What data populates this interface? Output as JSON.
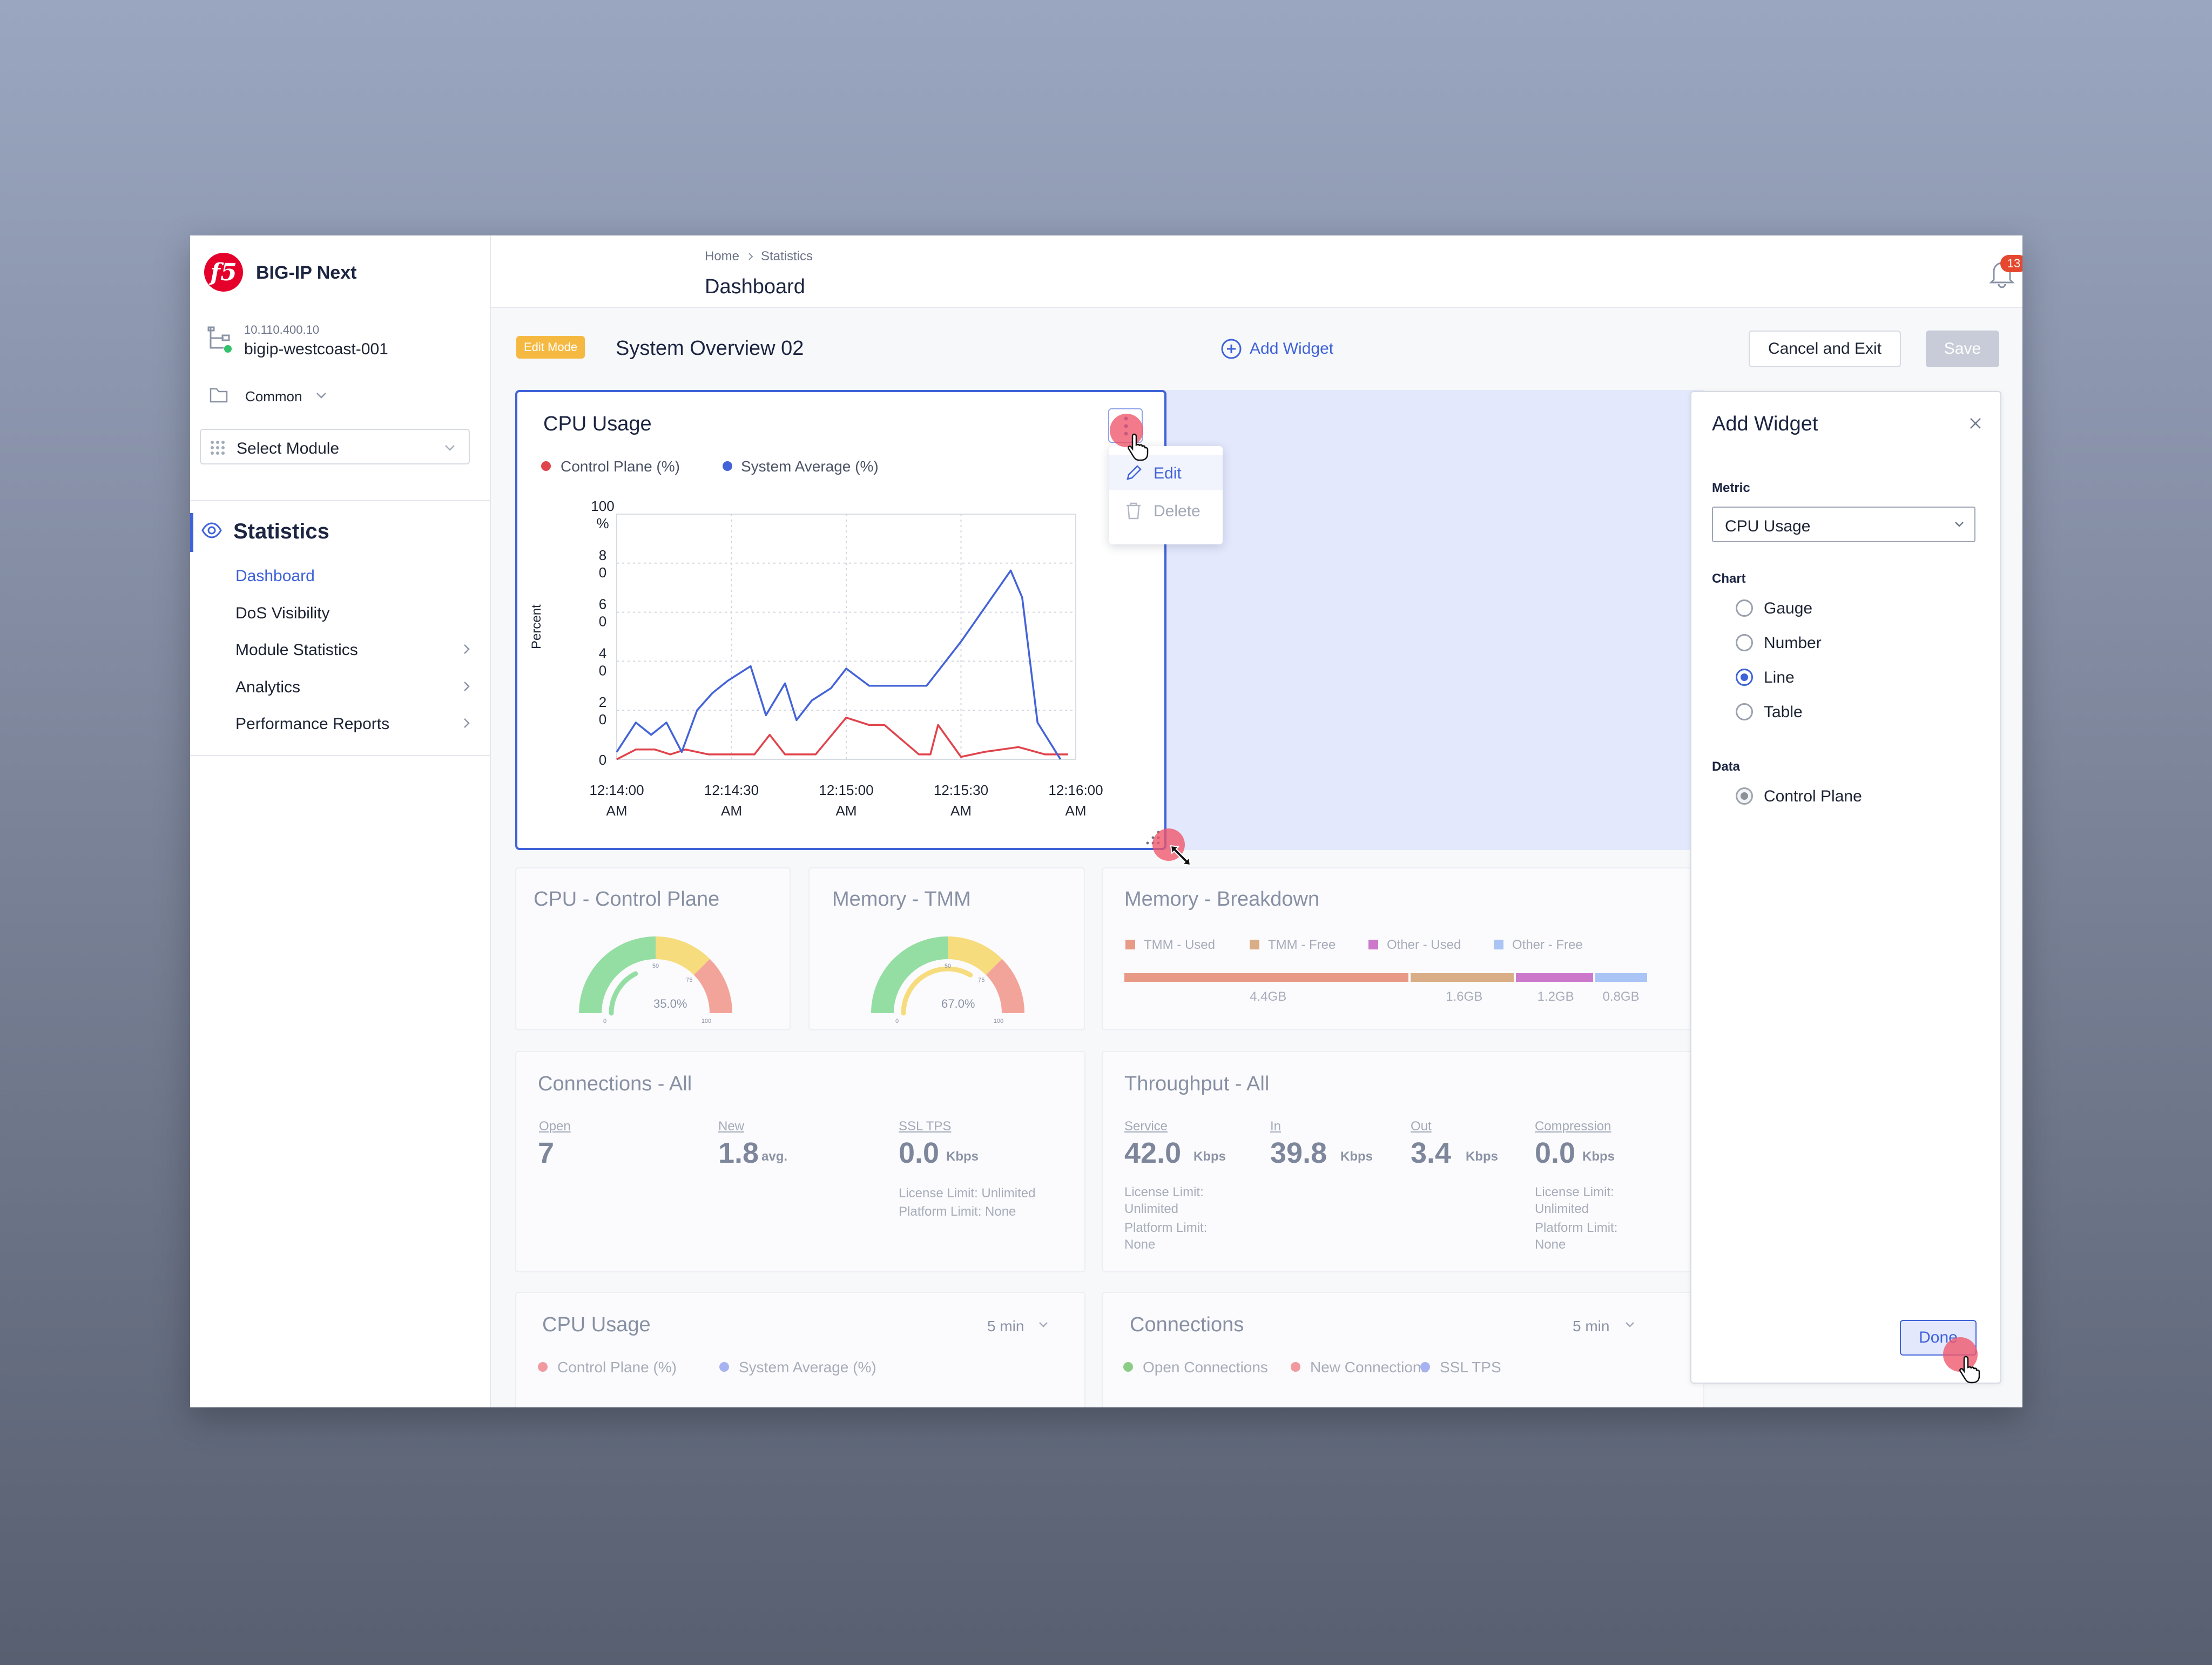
{
  "app": {
    "name": "BIG-IP Next"
  },
  "device": {
    "ip": "10.110.400.10",
    "name": "bigip-westcoast-001"
  },
  "partition": "Common",
  "module_select": {
    "placeholder": "Select Module"
  },
  "nav": {
    "section": "Statistics",
    "items": [
      {
        "label": "Dashboard",
        "active": true
      },
      {
        "label": "DoS Visibility"
      },
      {
        "label": "Module Statistics"
      },
      {
        "label": "Analytics"
      },
      {
        "label": "Performance Reports"
      }
    ]
  },
  "breadcrumb": {
    "home": "Home",
    "current": "Statistics"
  },
  "page_title": "Dashboard",
  "header": {
    "notifications_count": "13"
  },
  "toolbar": {
    "mode_badge": "Edit Mode",
    "dashboard_name": "System Overview 02",
    "add_widget": "Add Widget",
    "cancel": "Cancel and Exit",
    "save": "Save"
  },
  "cpu_widget": {
    "title": "CPU Usage",
    "legend": [
      "Control Plane (%)",
      "System Average (%)"
    ],
    "ylabel": "Percent",
    "menu": {
      "edit": "Edit",
      "delete": "Delete"
    }
  },
  "chart_data": {
    "type": "line",
    "title": "CPU Usage",
    "xlabel": "",
    "ylabel": "Percent",
    "ylim": [
      0,
      100
    ],
    "ytick_labels": [
      "100\n%",
      "8\n0",
      "6\n0",
      "4\n0",
      "2\n0",
      "0"
    ],
    "yticks": [
      100,
      80,
      60,
      40,
      20,
      0
    ],
    "x_tick_labels": [
      "12:14:00\nAM",
      "12:14:30\nAM",
      "12:15:00\nAM",
      "12:15:30\nAM",
      "12:16:00\nAM"
    ],
    "x_ticks": [
      0,
      30,
      60,
      90,
      120
    ],
    "grid": true,
    "legend_position": "top-left",
    "series": [
      {
        "name": "Control Plane (%)",
        "color": "#e0444c",
        "x": [
          0,
          5,
          10,
          14,
          18,
          24,
          30,
          36,
          40,
          44,
          52,
          60,
          66,
          70,
          79,
          82,
          84,
          90,
          96,
          105,
          112,
          118
        ],
        "y": [
          0,
          4,
          4,
          2,
          4,
          2,
          2,
          2,
          10,
          2,
          2,
          17,
          14,
          14,
          2,
          2,
          14,
          1,
          3,
          5,
          2,
          2
        ]
      },
      {
        "name": "System Average (%)",
        "color": "#4463d8",
        "x": [
          0,
          5,
          9,
          13,
          17,
          21,
          25,
          29,
          35,
          39,
          44,
          47,
          51,
          56,
          60,
          66,
          70,
          78,
          81,
          90,
          103,
          106,
          110,
          116
        ],
        "y": [
          3,
          15,
          10,
          15,
          3,
          20,
          27,
          32,
          38,
          18,
          31,
          16,
          24,
          29,
          37,
          30,
          30,
          30,
          30,
          48,
          77,
          66,
          15,
          0
        ]
      }
    ]
  },
  "gauges": [
    {
      "title": "CPU - Control Plane",
      "value": 35.0,
      "label": "35.0%",
      "ticks": [
        "0",
        "50",
        "75",
        "100"
      ]
    },
    {
      "title": "Memory - TMM",
      "value": 67.0,
      "label": "67.0%",
      "ticks": [
        "0",
        "50",
        "75",
        "100"
      ]
    }
  ],
  "memory_breakdown": {
    "title": "Memory - Breakdown",
    "segments": [
      {
        "name": "TMM - Used",
        "value": "4.4GB",
        "gb": 4.4,
        "color": "#e99a86"
      },
      {
        "name": "TMM - Free",
        "value": "1.6GB",
        "gb": 1.6,
        "color": "#d9ad86"
      },
      {
        "name": "Other - Used",
        "value": "1.2GB",
        "gb": 1.2,
        "color": "#cc79cc"
      },
      {
        "name": "Other - Free",
        "value": "0.8GB",
        "gb": 0.8,
        "color": "#a9c4f5"
      }
    ]
  },
  "connections": {
    "title": "Connections - All",
    "stats": [
      {
        "label": "Open",
        "value": "7",
        "unit": ""
      },
      {
        "label": "New",
        "value": "1.8",
        "unit": "avg."
      },
      {
        "label": "SSL TPS",
        "value": "0.0",
        "unit": "Kbps",
        "limit1": "License Limit: Unlimited",
        "limit2": "Platform Limit: None"
      }
    ]
  },
  "throughput": {
    "title": "Throughput - All",
    "stats": [
      {
        "label": "Service",
        "value": "42.0",
        "unit": "Kbps",
        "limit1": "License Limit: Unlimited",
        "limit2": "Platform Limit: None"
      },
      {
        "label": "In",
        "value": "39.8",
        "unit": "Kbps"
      },
      {
        "label": "Out",
        "value": "3.4",
        "unit": "Kbps"
      },
      {
        "label": "Compression",
        "value": "0.0",
        "unit": "Kbps",
        "limit1": "License Limit: Unlimited",
        "limit2": "Platform Limit: None"
      }
    ]
  },
  "cpu_usage_small": {
    "title": "CPU Usage",
    "range": "5 min",
    "legend": [
      "Control Plane (%)",
      "System Average (%)"
    ]
  },
  "connections_small": {
    "title": "Connections",
    "range": "5 min",
    "legend": [
      "Open Connections",
      "New Connections",
      "SSL TPS"
    ]
  },
  "add_widget_panel": {
    "title": "Add Widget",
    "metric_label": "Metric",
    "metric_value": "CPU Usage",
    "chart_label": "Chart",
    "chart_options": [
      "Gauge",
      "Number",
      "Line",
      "Table"
    ],
    "chart_selected": "Line",
    "data_label": "Data",
    "data_option": "Control Plane",
    "done": "Done"
  },
  "colors": {
    "accent": "#3f62d8",
    "badge": "#f5b942",
    "notification": "#e5472f",
    "brand": "#e4002b"
  }
}
